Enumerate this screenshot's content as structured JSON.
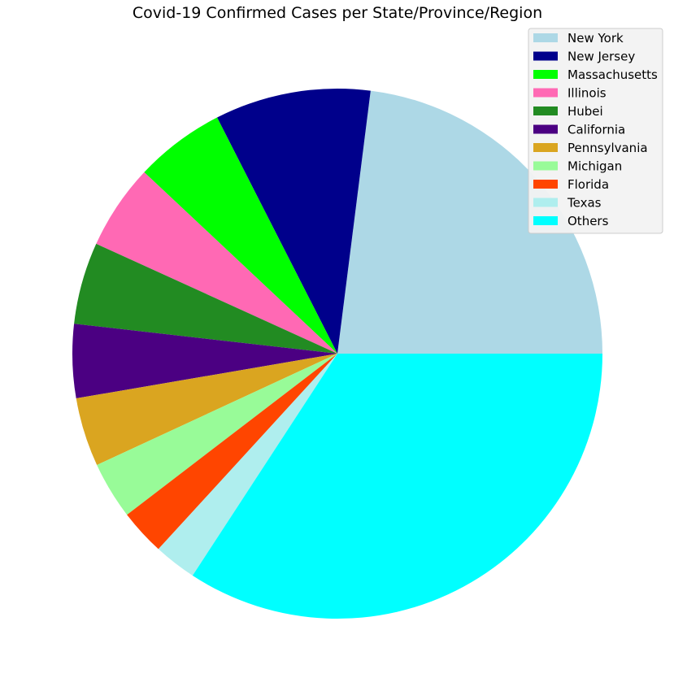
{
  "chart_data": {
    "type": "pie",
    "title": "Covid-19 Confirmed Cases per State/Province/Region",
    "start_angle_deg": 0,
    "direction": "counterclockwise",
    "legend_position": "top-right",
    "slices": [
      {
        "label": "New York",
        "value": 23.0,
        "color": "#ADD8E6"
      },
      {
        "label": "New Jersey",
        "value": 9.5,
        "color": "#00008B"
      },
      {
        "label": "Massachusetts",
        "value": 5.5,
        "color": "#00FF00"
      },
      {
        "label": "Illinois",
        "value": 5.2,
        "color": "#FF69B4"
      },
      {
        "label": "Hubei",
        "value": 5.0,
        "color": "#228B22"
      },
      {
        "label": "California",
        "value": 4.5,
        "color": "#4B0082"
      },
      {
        "label": "Pennsylvania",
        "value": 4.2,
        "color": "#DAA520"
      },
      {
        "label": "Michigan",
        "value": 3.5,
        "color": "#98FB98"
      },
      {
        "label": "Florida",
        "value": 2.8,
        "color": "#FF4500"
      },
      {
        "label": "Texas",
        "value": 2.6,
        "color": "#AFEEEE"
      },
      {
        "label": "Others",
        "value": 34.2,
        "color": "#00FFFF"
      }
    ]
  }
}
